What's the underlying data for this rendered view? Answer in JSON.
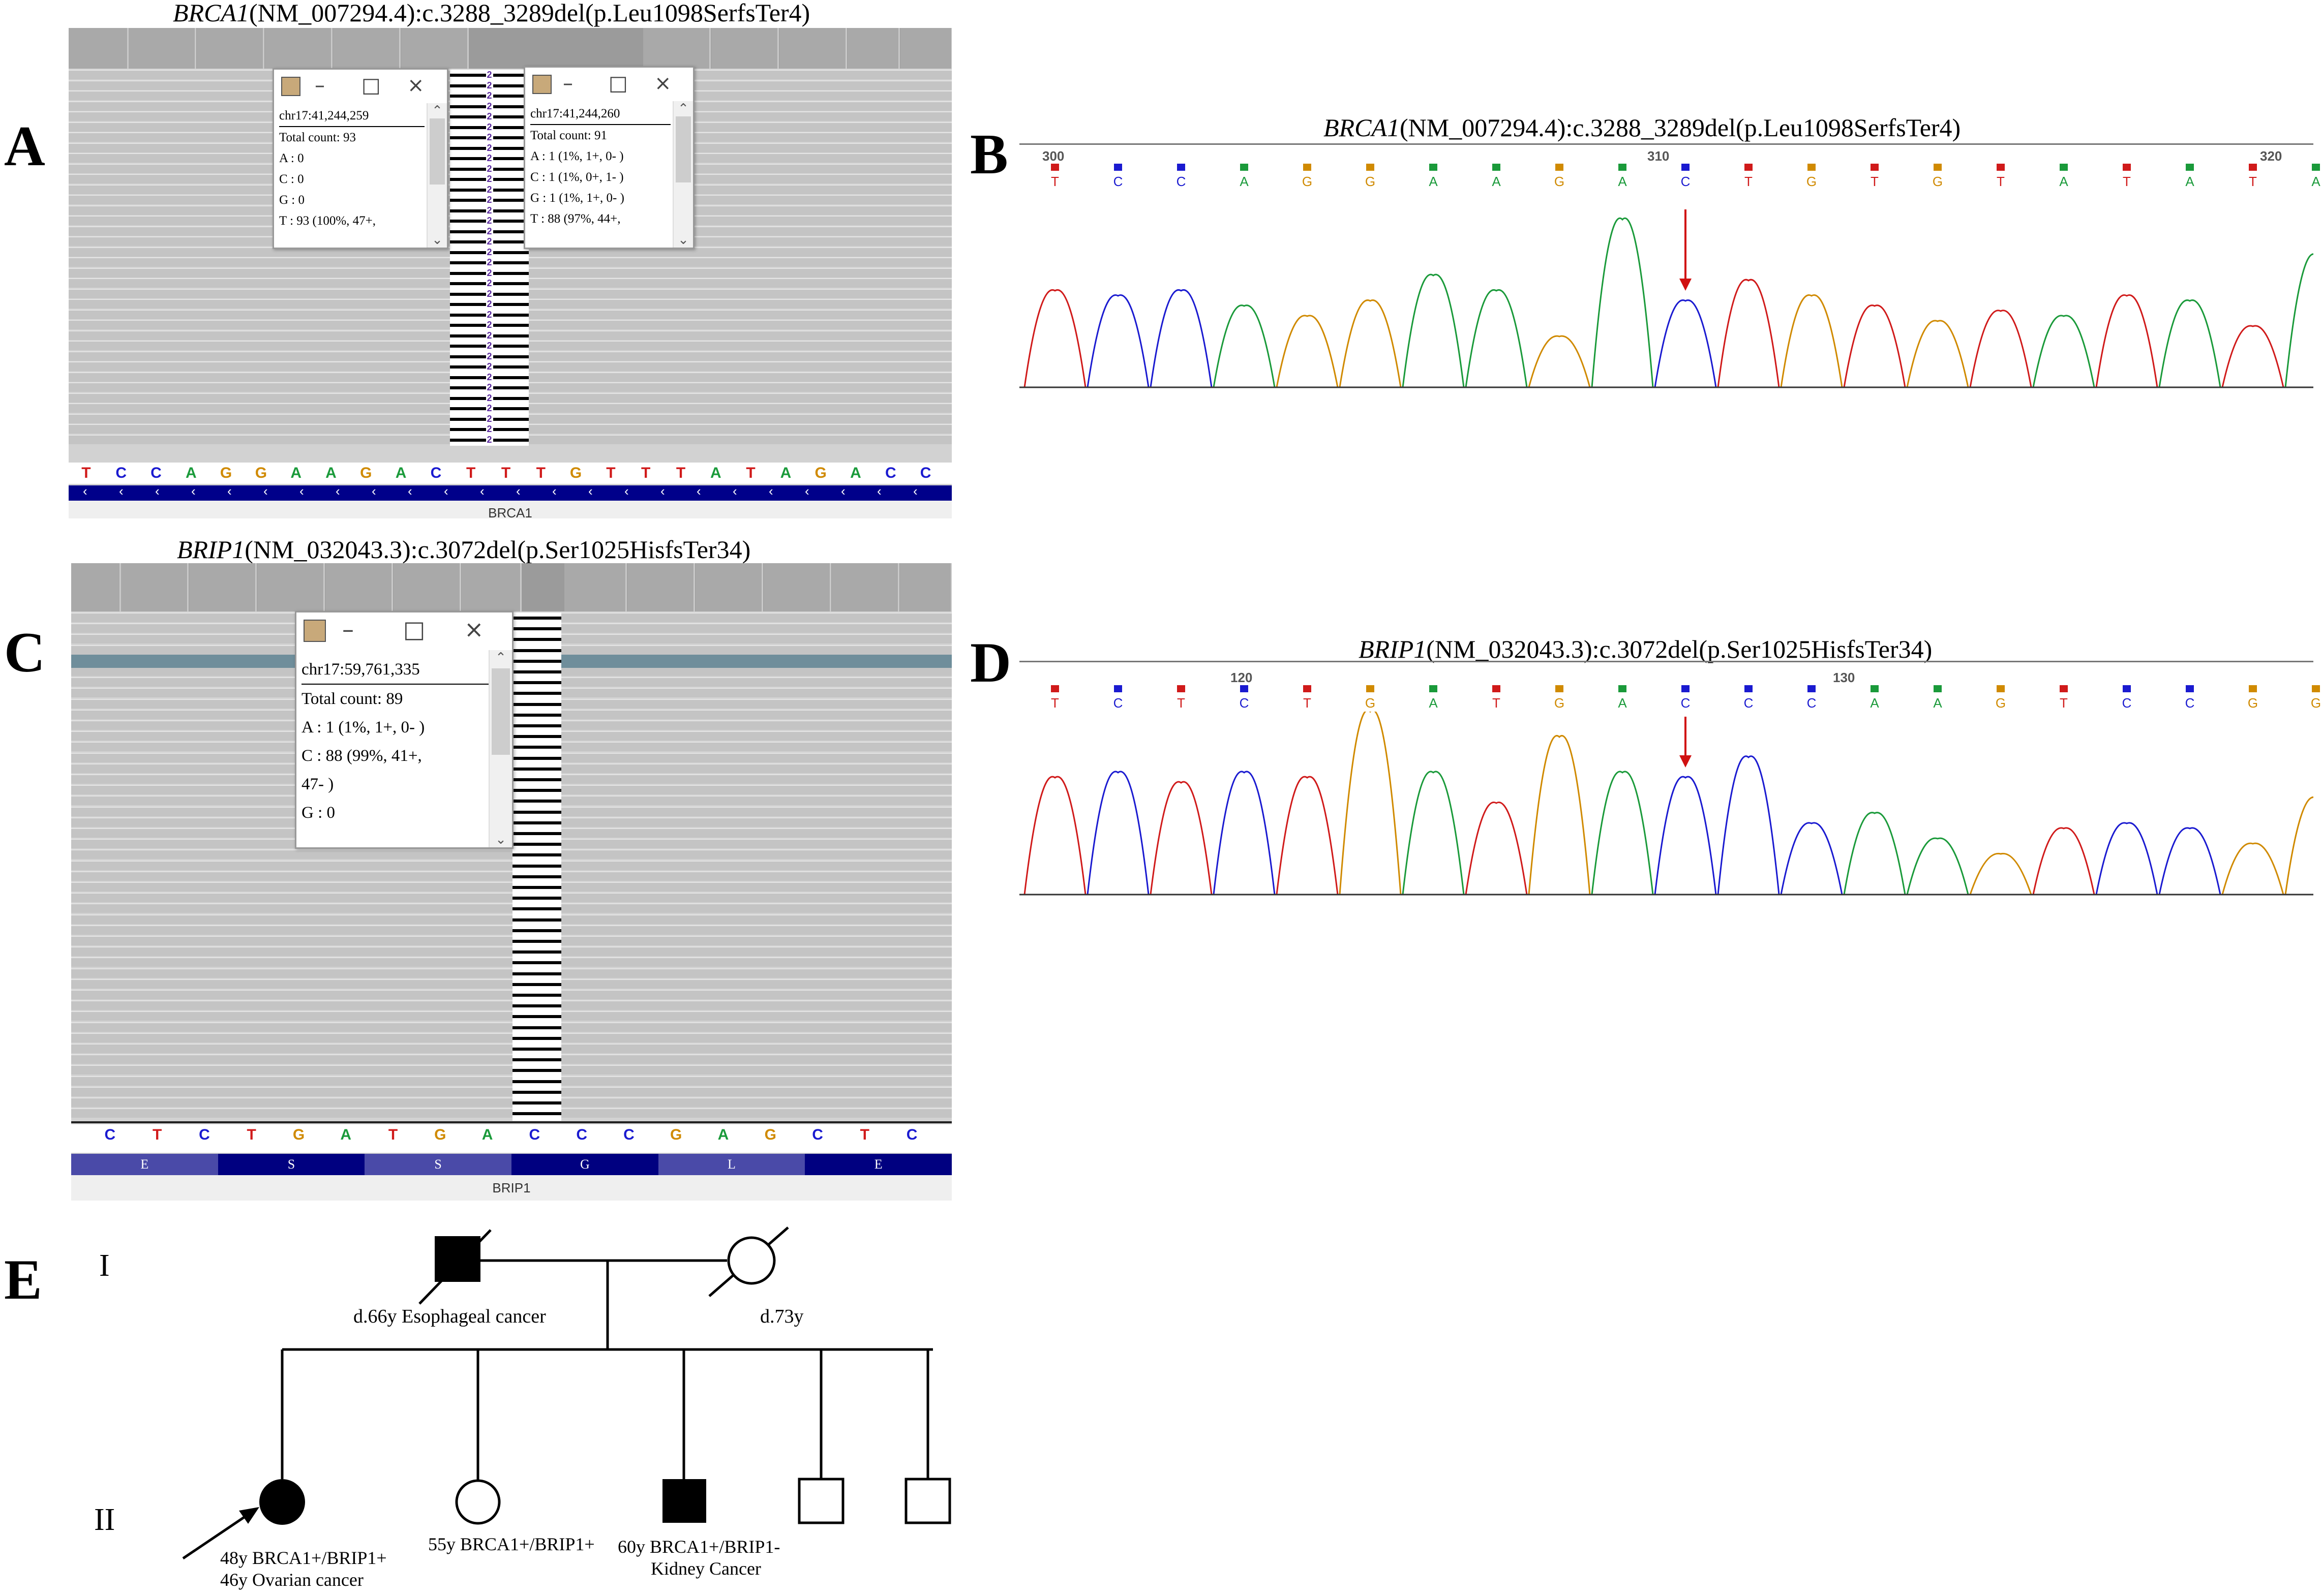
{
  "panels": {
    "A": {
      "label": "A",
      "title_gene": "BRCA1",
      "title_rest": "(NM_007294.4):c.3288_3289del(p.Leu1098SerfsTer4)"
    },
    "B": {
      "label": "B",
      "title_gene": "BRCA1",
      "title_rest": "(NM_007294.4):c.3288_3289del(p.Leu1098SerfsTer4)"
    },
    "C": {
      "label": "C",
      "title_gene": "BRIP1",
      "title_rest": "(NM_032043.3):c.3072del(p.Ser1025HisfsTer34)"
    },
    "D": {
      "label": "D",
      "title_gene": "BRIP1",
      "title_rest": "(NM_032043.3):c.3072del(p.Ser1025HisfsTer34)"
    },
    "E": {
      "label": "E"
    }
  },
  "igv_a": {
    "sequence": [
      "T",
      "C",
      "C",
      "A",
      "G",
      "G",
      "A",
      "A",
      "G",
      "A",
      "C",
      "T",
      "T",
      "T",
      "G",
      "T",
      "T",
      "T",
      "A",
      "T",
      "A",
      "G",
      "A",
      "C",
      "C"
    ],
    "gene_name": "BRCA1",
    "del_mark": "2",
    "popup1": {
      "locus": "chr17:41,244,259",
      "lines": [
        "Total count: 93",
        "A : 0",
        "C : 0",
        "G : 0",
        "T : 93 (100%, 47+,"
      ]
    },
    "popup2": {
      "locus": "chr17:41,244,260",
      "lines": [
        "Total count: 91",
        "A : 1 (1%, 1+, 0- )",
        "C : 1 (1%, 0+, 1- )",
        "G : 1 (1%, 1+, 0- )",
        "T : 88 (97%, 44+,"
      ]
    }
  },
  "igv_c": {
    "sequence": [
      "C",
      "T",
      "C",
      "T",
      "G",
      "A",
      "T",
      "G",
      "A",
      "C",
      "C",
      "C",
      "G",
      "A",
      "G",
      "C",
      "T",
      "C"
    ],
    "amino_acids": [
      "E",
      "S",
      "S",
      "G",
      "L",
      "E"
    ],
    "gene_name": "BRIP1",
    "popup": {
      "locus": "chr17:59,761,335",
      "lines": [
        "Total count: 89",
        "A : 1 (1%, 1+, 0- )",
        "C : 88 (99%, 41+,",
        "47- )",
        "G : 0"
      ]
    }
  },
  "chromo_b": {
    "bases": [
      "T",
      "C",
      "C",
      "A",
      "G",
      "G",
      "A",
      "A",
      "G",
      "A",
      "C",
      "T",
      "G",
      "T",
      "G",
      "T",
      "A",
      "T",
      "A",
      "T",
      "A"
    ],
    "ticks": [
      "300",
      "310",
      "320"
    ]
  },
  "chromo_d": {
    "bases": [
      "T",
      "C",
      "T",
      "C",
      "T",
      "G",
      "A",
      "T",
      "G",
      "A",
      "C",
      "C",
      "C",
      "A",
      "A",
      "G",
      "T",
      "C",
      "C",
      "G",
      "G"
    ],
    "ticks": [
      "120",
      "130"
    ]
  },
  "pedigree": {
    "gen_I": "I",
    "gen_II": "II",
    "father_label": "d.66y Esophageal cancer",
    "mother_label": "d.73y",
    "proband_line1": "48y BRCA1+/BRIP1+",
    "proband_line2": "46y Ovarian cancer",
    "sister_label": "55y BRCA1+/BRIP1+",
    "brother_line1": "60y BRCA1+/BRIP1-",
    "brother_line2": "Kidney Cancer"
  },
  "colors": {
    "A": "#1a9a3a",
    "C": "#1a1ad0",
    "G": "#d08a00",
    "T": "#d01a1a",
    "igv_gene": "#00008a",
    "arrow": "#d01010"
  }
}
